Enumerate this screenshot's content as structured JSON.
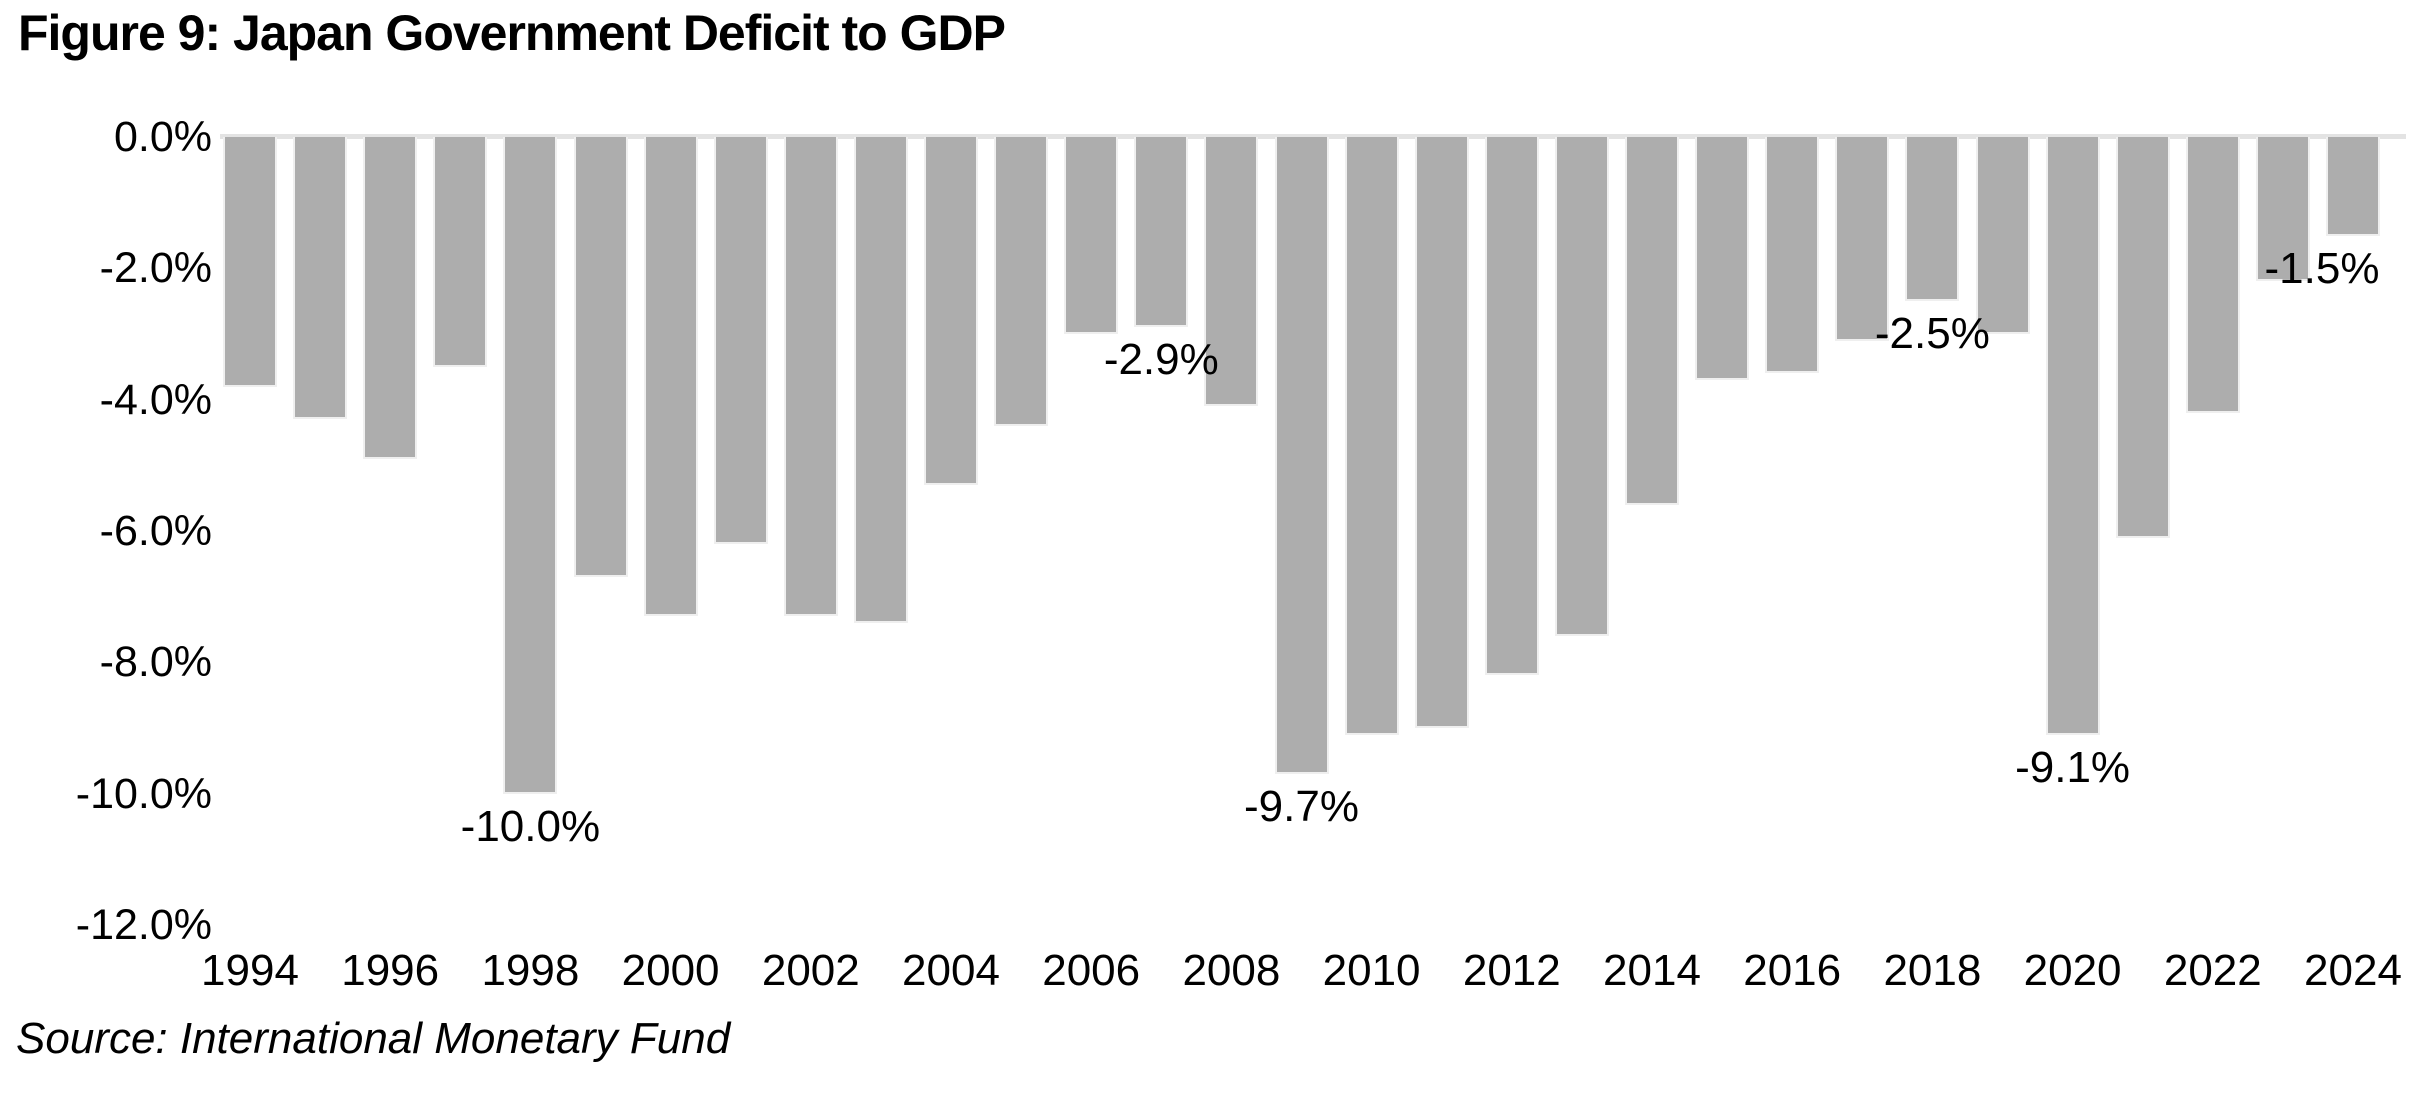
{
  "title": "Figure 9: Japan Government Deficit to GDP",
  "source": "Source: International Monetary Fund",
  "colors": {
    "bar": "#ADADAD",
    "bar_edge": "#EFEFEF",
    "gridline": "#E3E3E3",
    "text": "#000000",
    "background": "#FFFFFF"
  },
  "chart_data": {
    "type": "bar",
    "title": "Figure 9: Japan Government Deficit to GDP",
    "xlabel": "",
    "ylabel": "",
    "ylim": [
      -12,
      0
    ],
    "grid": "zero-line-only",
    "legend": "none",
    "y_ticks": [
      {
        "value": 0,
        "label": "0.0%"
      },
      {
        "value": -2,
        "label": "-2.0%"
      },
      {
        "value": -4,
        "label": "-4.0%"
      },
      {
        "value": -6,
        "label": "-6.0%"
      },
      {
        "value": -8,
        "label": "-8.0%"
      },
      {
        "value": -10,
        "label": "-10.0%"
      },
      {
        "value": -12,
        "label": "-12.0%"
      }
    ],
    "x_tick_labels": [
      "1994",
      "1996",
      "1998",
      "2000",
      "2002",
      "2004",
      "2006",
      "2008",
      "2010",
      "2012",
      "2014",
      "2016",
      "2018",
      "2020",
      "2022",
      "2024"
    ],
    "categories": [
      "1994",
      "1995",
      "1996",
      "1997",
      "1998",
      "1999",
      "2000",
      "2001",
      "2002",
      "2003",
      "2004",
      "2005",
      "2006",
      "2007",
      "2008",
      "2009",
      "2010",
      "2011",
      "2012",
      "2013",
      "2014",
      "2015",
      "2016",
      "2017",
      "2018",
      "2019",
      "2020",
      "2021",
      "2022",
      "2023",
      "2024"
    ],
    "values": [
      -3.8,
      -4.3,
      -4.9,
      -3.5,
      -10.0,
      -6.7,
      -7.3,
      -6.2,
      -7.3,
      -7.4,
      -5.3,
      -4.4,
      -3.0,
      -2.9,
      -4.1,
      -9.7,
      -9.1,
      -9.0,
      -8.2,
      -7.6,
      -5.6,
      -3.7,
      -3.6,
      -3.1,
      -2.5,
      -3.0,
      -9.1,
      -6.1,
      -4.2,
      -2.2,
      -1.5
    ],
    "annotations": [
      {
        "year": "1998",
        "label": "-10.0%"
      },
      {
        "year": "2007",
        "label": "-2.9%"
      },
      {
        "year": "2009",
        "label": "-9.7%"
      },
      {
        "year": "2018",
        "label": "-2.5%"
      },
      {
        "year": "2020",
        "label": "-9.1%"
      },
      {
        "year": "2024",
        "label": "-1.5%"
      }
    ]
  }
}
